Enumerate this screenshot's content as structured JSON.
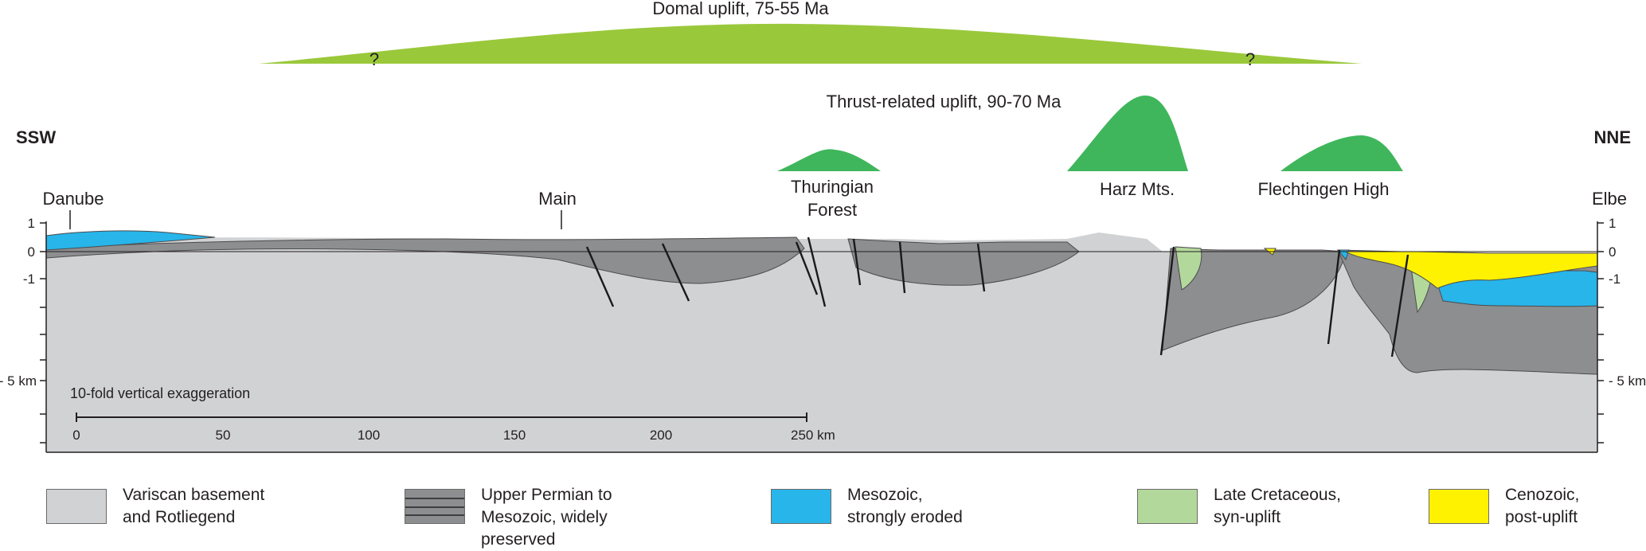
{
  "uplift": {
    "domal_label": "Domal uplift, 75-55 Ma",
    "thrust_label": "Thrust-related uplift, 90-70 Ma",
    "question_mark": "?"
  },
  "directions": {
    "left": "SSW",
    "right": "NNE"
  },
  "places": {
    "danube": "Danube",
    "main": "Main",
    "thuringian": [
      "Thuringian",
      "Forest"
    ],
    "harz": "Harz Mts.",
    "flechtingen": "Flechtingen High",
    "elbe": "Elbe"
  },
  "depth_ticks": [
    "1",
    "0",
    "-1",
    "- 5 km"
  ],
  "exaggeration_note": "10-fold vertical exaggeration",
  "scale_bar": {
    "values": [
      "0",
      "50",
      "100",
      "150",
      "200",
      "250 km"
    ]
  },
  "colors": {
    "domal": "#9ac83b",
    "thrust": "#3fb65b",
    "basement": "#d1d2d3",
    "permian": "#8d8e90",
    "mesozoic": "#27b5ea",
    "late_cretaceous": "#b3d89c",
    "cenozoic": "#fff200"
  },
  "legend": [
    {
      "label": "Variscan basement\nand Rotliegend",
      "swatch": "basement"
    },
    {
      "label": "Upper Permian to\nMesozoic, widely\npreserved",
      "swatch": "permian"
    },
    {
      "label": "Mesozoic,\nstrongly eroded",
      "swatch": "mesozoic"
    },
    {
      "label": "Late Cretaceous,\nsyn-uplift",
      "swatch": "late_cretaceous"
    },
    {
      "label": "Cenozoic,\npost-uplift",
      "swatch": "cenozoic"
    }
  ]
}
